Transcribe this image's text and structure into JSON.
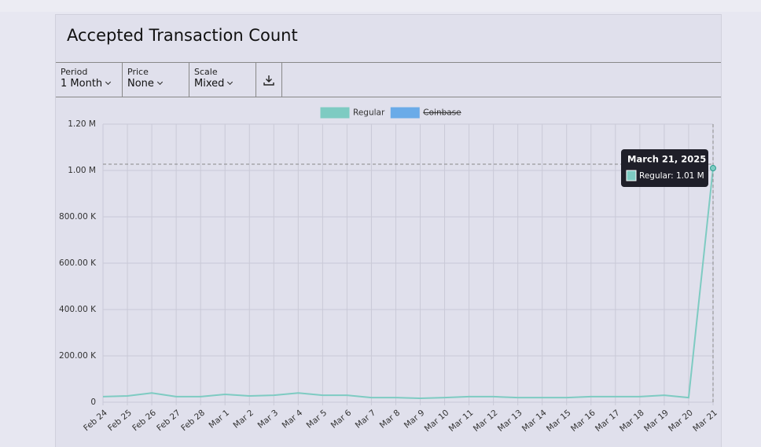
{
  "header": {
    "title": "Accepted Transaction Count"
  },
  "controls": [
    {
      "label": "Period",
      "value": "1 Month"
    },
    {
      "label": "Price",
      "value": "None"
    },
    {
      "label": "Scale",
      "value": "Mixed"
    }
  ],
  "chart_data": {
    "type": "line",
    "categories": [
      "Feb 24",
      "Feb 25",
      "Feb 26",
      "Feb 27",
      "Feb 28",
      "Mar 1",
      "Mar 2",
      "Mar 3",
      "Mar 4",
      "Mar 5",
      "Mar 6",
      "Mar 7",
      "Mar 8",
      "Mar 9",
      "Mar 10",
      "Mar 11",
      "Mar 12",
      "Mar 13",
      "Mar 14",
      "Mar 15",
      "Mar 16",
      "Mar 17",
      "Mar 18",
      "Mar 19",
      "Mar 20",
      "Mar 21"
    ],
    "series": [
      {
        "name": "Regular",
        "color": "#7ecbc2",
        "values": [
          24000,
          27000,
          40000,
          24000,
          24000,
          34000,
          27000,
          30000,
          40000,
          30000,
          30000,
          20000,
          20000,
          17000,
          20000,
          24000,
          24000,
          20000,
          20000,
          20000,
          24000,
          24000,
          24000,
          30000,
          20000,
          1010000
        ]
      },
      {
        "name": "Coinbase",
        "color": "#6aabe8",
        "hidden": true,
        "values": [
          null,
          null,
          null,
          null,
          null,
          null,
          null,
          null,
          null,
          null,
          null,
          null,
          null,
          null,
          null,
          null,
          null,
          null,
          null,
          null,
          null,
          null,
          null,
          null,
          null,
          null
        ]
      }
    ],
    "ylim": [
      0,
      1200000
    ],
    "yticks": [
      0,
      {
        "value": 200000,
        "label": "200.00 K"
      },
      {
        "value": 400000,
        "label": "400.00 K"
      },
      {
        "value": 600000,
        "label": "600.00 K"
      },
      {
        "value": 800000,
        "label": "800.00 K"
      },
      {
        "value": 1000000,
        "label": "1.00 M"
      },
      {
        "value": 1200000,
        "label": "1.20 M"
      }
    ],
    "grid": true,
    "legend": "top",
    "tooltip": {
      "index": 25,
      "title": "March 21, 2025",
      "text": "Regular: 1.01 M"
    }
  }
}
